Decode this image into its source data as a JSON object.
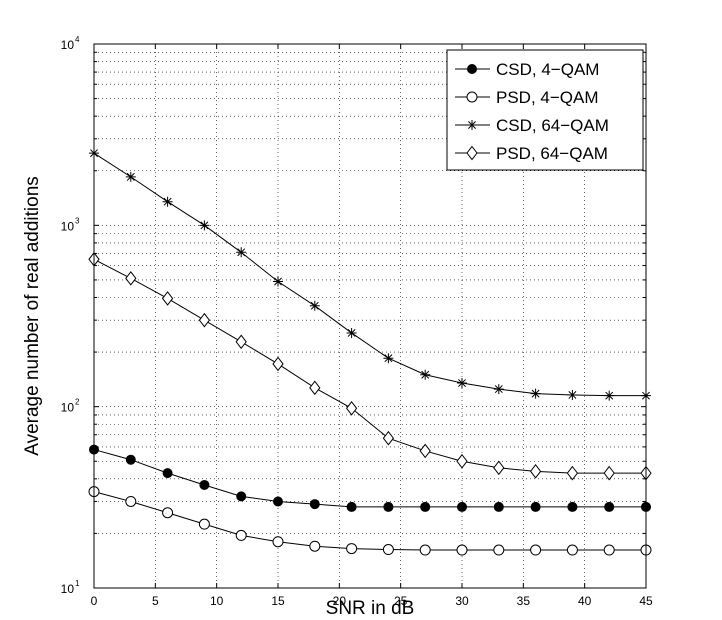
{
  "chart_data": {
    "type": "line",
    "xscale": "linear",
    "yscale": "log",
    "xlabel": "SNR in dB",
    "ylabel": "Average number of real additions",
    "xlim": [
      0,
      45
    ],
    "ylim": [
      10,
      10000
    ],
    "grid": true,
    "legend_position": "top-right",
    "x": [
      0,
      3,
      6,
      9,
      12,
      15,
      18,
      21,
      24,
      27,
      30,
      33,
      36,
      39,
      42,
      45
    ],
    "x_ticks": [
      0,
      5,
      10,
      15,
      20,
      25,
      30,
      35,
      40,
      45
    ],
    "x_tick_labels": [
      "0",
      "5",
      "10",
      "15",
      "20",
      "25",
      "30",
      "35",
      "40",
      "45"
    ],
    "y_ticks": [
      {
        "base": "10",
        "exp": "1"
      },
      {
        "base": "10",
        "exp": "2"
      },
      {
        "base": "10",
        "exp": "3"
      },
      {
        "base": "10",
        "exp": "4"
      }
    ],
    "series": [
      {
        "name": "CSD, 4−QAM",
        "marker": "filled-circle",
        "values": [
          58,
          51,
          43,
          37,
          32,
          30,
          29,
          28,
          28,
          28,
          28,
          28,
          28,
          28,
          28,
          28
        ]
      },
      {
        "name": "PSD, 4−QAM",
        "marker": "open-circle",
        "values": [
          34,
          30,
          26,
          22.5,
          19.5,
          18,
          17,
          16.5,
          16.3,
          16.2,
          16.2,
          16.2,
          16.2,
          16.2,
          16.2,
          16.2
        ]
      },
      {
        "name": "CSD, 64−QAM",
        "marker": "asterisk",
        "values": [
          2500,
          1850,
          1350,
          1000,
          710,
          490,
          360,
          255,
          185,
          150,
          135,
          125,
          118,
          116,
          115,
          115
        ]
      },
      {
        "name": "PSD, 64−QAM",
        "marker": "diamond",
        "values": [
          650,
          510,
          395,
          300,
          228,
          172,
          127,
          98,
          67,
          57,
          50,
          46,
          44,
          43,
          43,
          43
        ]
      }
    ]
  }
}
